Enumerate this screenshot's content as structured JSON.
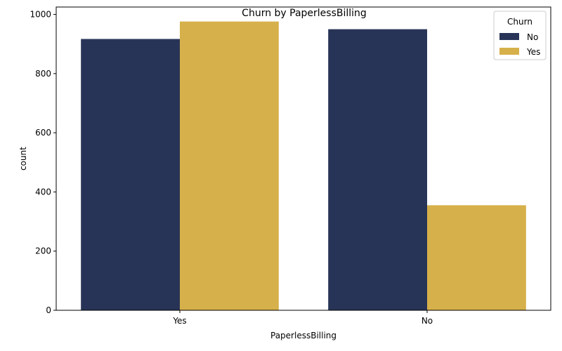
{
  "chart_data": {
    "type": "bar",
    "title": "Churn by PaperlessBilling",
    "xlabel": "PaperlessBilling",
    "ylabel": "count",
    "categories": [
      "Yes",
      "No"
    ],
    "series": [
      {
        "name": "No",
        "values": [
          917,
          950
        ],
        "color": "#283457"
      },
      {
        "name": "Yes",
        "values": [
          976,
          355
        ],
        "color": "#d6b04a"
      }
    ],
    "ylim": [
      0,
      1025
    ],
    "yticks": [
      0,
      200,
      400,
      600,
      800,
      1000
    ],
    "legend": {
      "title": "Churn",
      "placement": "top-right"
    },
    "grid": false
  }
}
